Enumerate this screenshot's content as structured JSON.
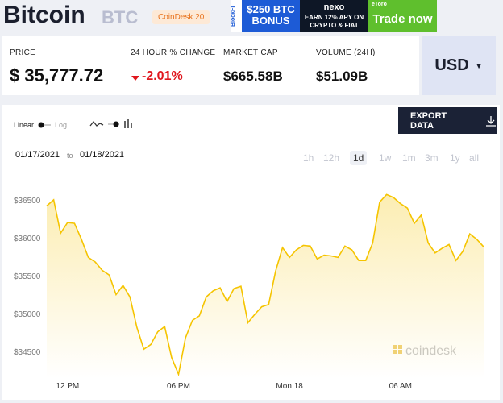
{
  "header": {
    "title": "Bitcoin",
    "symbol": "BTC",
    "badge": "CoinDesk 20"
  },
  "ads": [
    {
      "brand": "BlockFi",
      "text": "$250 BTC BONUS"
    },
    {
      "brand": "nexo",
      "text": "EARN 12% APY ON CRYPTO & FIAT"
    },
    {
      "brand": "eToro",
      "text": "Trade now"
    }
  ],
  "stats": [
    {
      "label": "PRICE",
      "value": "$ 35,777.72"
    },
    {
      "label": "24 HOUR % CHANGE",
      "value": "-2.01%"
    },
    {
      "label": "MARKET CAP",
      "value": "$665.58B"
    },
    {
      "label": "VOLUME (24H)",
      "value": "$51.09B"
    }
  ],
  "currency": "USD",
  "controls": {
    "linear": "Linear",
    "log": "Log",
    "export": "EXPORT DATA",
    "date_from": "01/17/2021",
    "to": "to",
    "date_to": "01/18/2021",
    "ranges": [
      "1h",
      "12h",
      "1d",
      "1w",
      "1m",
      "3m",
      "1y",
      "all"
    ]
  },
  "chart_data": {
    "type": "line",
    "watermark": "coindesk",
    "categories": [
      null,
      null,
      null,
      "12 PM",
      null,
      null,
      null,
      null,
      null,
      null,
      null,
      null,
      null,
      null,
      null,
      null,
      null,
      null,
      null,
      "06 PM",
      null,
      null,
      null,
      null,
      null,
      null,
      null,
      null,
      null,
      null,
      null,
      null,
      null,
      null,
      null,
      "Mon 18",
      null,
      null,
      null,
      null,
      null,
      null,
      null,
      null,
      null,
      null,
      null,
      null,
      null,
      null,
      null,
      "06 AM",
      null,
      null,
      null,
      null,
      null,
      null,
      null,
      null,
      null,
      null,
      null,
      null
    ],
    "series": [
      {
        "name": "BTC",
        "color": "#f5c400",
        "values": [
          36430,
          36510,
          36070,
          36210,
          36200,
          35990,
          35750,
          35690,
          35580,
          35520,
          35260,
          35380,
          35230,
          34830,
          34540,
          34600,
          34770,
          34840,
          34430,
          34210,
          34690,
          34920,
          34980,
          35230,
          35310,
          35350,
          35170,
          35340,
          35370,
          34890,
          35000,
          35100,
          35130,
          35570,
          35880,
          35750,
          35850,
          35910,
          35900,
          35730,
          35780,
          35770,
          35750,
          35900,
          35850,
          35710,
          35710,
          35940,
          36480,
          36580,
          36540,
          36460,
          36400,
          36200,
          36310,
          35940,
          35810,
          35870,
          35920,
          35710,
          35830,
          36060,
          35990,
          35890
        ]
      }
    ],
    "ylim": [
      34150,
      36700
    ],
    "yticks": [
      {
        "value": 34500,
        "label": "$34500"
      },
      {
        "value": 35000,
        "label": "$35000"
      },
      {
        "value": 35500,
        "label": "$35500"
      },
      {
        "value": 36000,
        "label": "$36000"
      },
      {
        "value": 36500,
        "label": "$36500"
      }
    ]
  }
}
